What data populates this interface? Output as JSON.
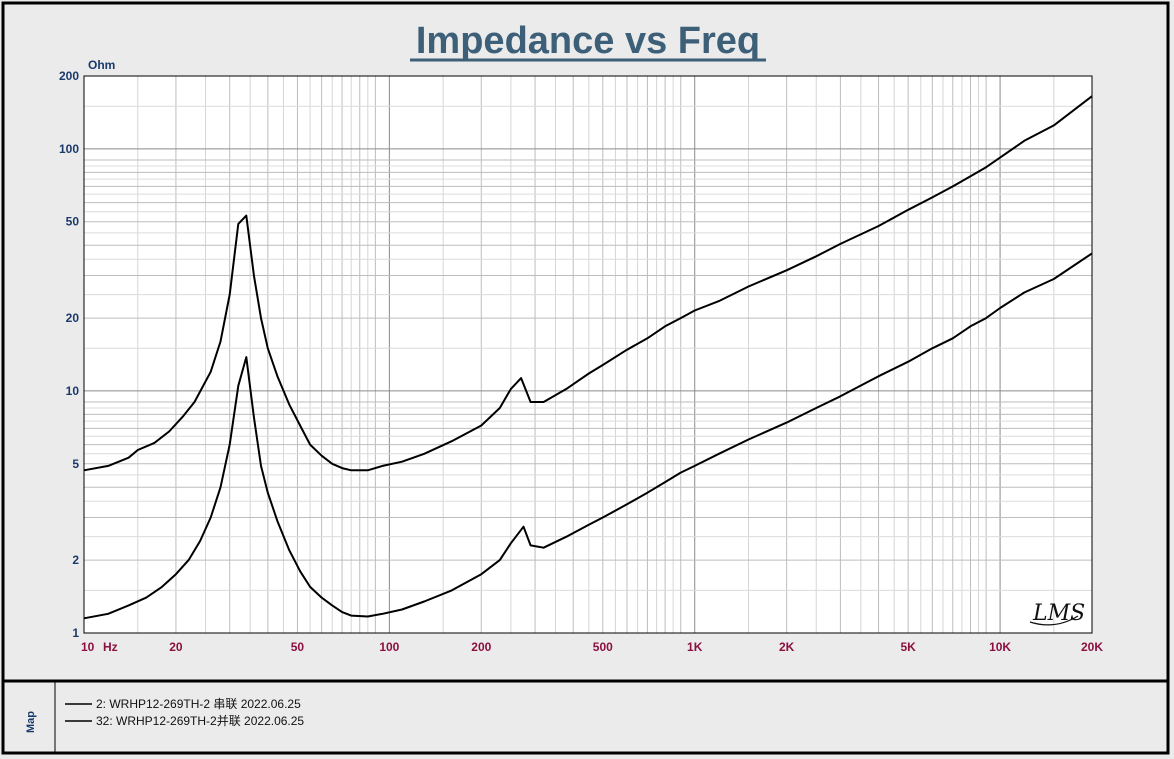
{
  "chart_data": {
    "type": "line",
    "title": "Impedance vs Freq",
    "ylabel": "Ohm",
    "xlabel": "Hz",
    "xscale": "log",
    "yscale": "log",
    "xlim": [
      10,
      20000
    ],
    "ylim": [
      1,
      200
    ],
    "grid": true,
    "x_ticks": [
      {
        "value": 10,
        "label": "10"
      },
      {
        "value": 20,
        "label": "20"
      },
      {
        "value": 50,
        "label": "50"
      },
      {
        "value": 100,
        "label": "100"
      },
      {
        "value": 200,
        "label": "200"
      },
      {
        "value": 500,
        "label": "500"
      },
      {
        "value": 1000,
        "label": "1K"
      },
      {
        "value": 2000,
        "label": "2K"
      },
      {
        "value": 5000,
        "label": "5K"
      },
      {
        "value": 10000,
        "label": "10K"
      },
      {
        "value": 20000,
        "label": "20K"
      }
    ],
    "y_ticks": [
      {
        "value": 1,
        "label": "1"
      },
      {
        "value": 2,
        "label": "2"
      },
      {
        "value": 5,
        "label": "5"
      },
      {
        "value": 10,
        "label": "10"
      },
      {
        "value": 20,
        "label": "20"
      },
      {
        "value": 50,
        "label": "50"
      },
      {
        "value": 100,
        "label": "100"
      },
      {
        "value": 200,
        "label": "200"
      }
    ],
    "series": [
      {
        "name": "2: WRHP12-269TH-2 串联 2022.06.25",
        "color": "#000000",
        "points": [
          [
            10,
            4.7
          ],
          [
            12,
            4.9
          ],
          [
            14,
            5.3
          ],
          [
            15,
            5.7
          ],
          [
            17,
            6.1
          ],
          [
            19,
            6.8
          ],
          [
            21,
            7.8
          ],
          [
            23,
            9.0
          ],
          [
            26,
            12
          ],
          [
            28,
            16
          ],
          [
            30,
            25
          ],
          [
            32,
            49
          ],
          [
            34,
            53
          ],
          [
            36,
            30
          ],
          [
            38,
            20
          ],
          [
            40,
            15
          ],
          [
            43,
            11.5
          ],
          [
            47,
            8.8
          ],
          [
            51,
            7.2
          ],
          [
            55,
            6.0
          ],
          [
            60,
            5.4
          ],
          [
            65,
            5.0
          ],
          [
            70,
            4.8
          ],
          [
            75,
            4.7
          ],
          [
            85,
            4.7
          ],
          [
            95,
            4.9
          ],
          [
            110,
            5.1
          ],
          [
            130,
            5.5
          ],
          [
            160,
            6.2
          ],
          [
            200,
            7.2
          ],
          [
            230,
            8.5
          ],
          [
            250,
            10.2
          ],
          [
            270,
            11.3
          ],
          [
            290,
            9.0
          ],
          [
            320,
            9.0
          ],
          [
            380,
            10.2
          ],
          [
            450,
            11.8
          ],
          [
            500,
            12.8
          ],
          [
            600,
            14.8
          ],
          [
            700,
            16.5
          ],
          [
            800,
            18.5
          ],
          [
            900,
            20
          ],
          [
            1000,
            21.5
          ],
          [
            1200,
            23.5
          ],
          [
            1500,
            27
          ],
          [
            2000,
            31.5
          ],
          [
            2500,
            36
          ],
          [
            3000,
            40.5
          ],
          [
            4000,
            48
          ],
          [
            5000,
            56
          ],
          [
            6000,
            63
          ],
          [
            7000,
            70
          ],
          [
            8000,
            77
          ],
          [
            9000,
            84
          ],
          [
            10000,
            92
          ],
          [
            12000,
            108
          ],
          [
            15000,
            125
          ],
          [
            20000,
            165
          ]
        ]
      },
      {
        "name": "32: WRHP12-269TH-2并联 2022.06.25",
        "color": "#000000",
        "points": [
          [
            10,
            1.15
          ],
          [
            12,
            1.2
          ],
          [
            14,
            1.3
          ],
          [
            16,
            1.4
          ],
          [
            18,
            1.55
          ],
          [
            20,
            1.75
          ],
          [
            22,
            2.0
          ],
          [
            24,
            2.4
          ],
          [
            26,
            3.0
          ],
          [
            28,
            4.0
          ],
          [
            30,
            6.0
          ],
          [
            32,
            10.5
          ],
          [
            34,
            13.8
          ],
          [
            36,
            7.8
          ],
          [
            38,
            4.9
          ],
          [
            40,
            3.8
          ],
          [
            43,
            2.9
          ],
          [
            47,
            2.2
          ],
          [
            51,
            1.8
          ],
          [
            55,
            1.55
          ],
          [
            60,
            1.4
          ],
          [
            65,
            1.3
          ],
          [
            70,
            1.22
          ],
          [
            75,
            1.18
          ],
          [
            85,
            1.17
          ],
          [
            95,
            1.2
          ],
          [
            110,
            1.25
          ],
          [
            130,
            1.35
          ],
          [
            160,
            1.5
          ],
          [
            200,
            1.75
          ],
          [
            230,
            2.0
          ],
          [
            250,
            2.35
          ],
          [
            275,
            2.75
          ],
          [
            290,
            2.3
          ],
          [
            320,
            2.25
          ],
          [
            380,
            2.5
          ],
          [
            450,
            2.8
          ],
          [
            500,
            3.0
          ],
          [
            600,
            3.4
          ],
          [
            700,
            3.8
          ],
          [
            800,
            4.2
          ],
          [
            900,
            4.6
          ],
          [
            1000,
            4.9
          ],
          [
            1200,
            5.5
          ],
          [
            1500,
            6.3
          ],
          [
            2000,
            7.4
          ],
          [
            2500,
            8.5
          ],
          [
            3000,
            9.5
          ],
          [
            4000,
            11.5
          ],
          [
            5000,
            13.2
          ],
          [
            6000,
            15
          ],
          [
            7000,
            16.5
          ],
          [
            8000,
            18.5
          ],
          [
            9000,
            20
          ],
          [
            10000,
            22
          ],
          [
            12000,
            25.5
          ],
          [
            15000,
            29
          ],
          [
            20000,
            37
          ]
        ]
      }
    ]
  },
  "legend": {
    "panel_label": "Map"
  },
  "logo": "LMS"
}
